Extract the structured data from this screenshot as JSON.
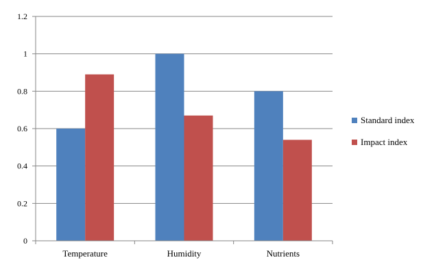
{
  "chart_data": {
    "type": "bar",
    "title": "",
    "xlabel": "",
    "ylabel": "",
    "categories": [
      "Temperature",
      "Humidity",
      "Nutrients"
    ],
    "series": [
      {
        "name": "Standard index",
        "values": [
          0.6,
          1.0,
          0.8
        ],
        "color": "#4F81BD"
      },
      {
        "name": "Impact index",
        "values": [
          0.89,
          0.67,
          0.54
        ],
        "color": "#C0504D"
      }
    ],
    "ylim": [
      0,
      1.2
    ],
    "yticks": [
      0,
      0.2,
      0.4,
      0.6,
      0.8,
      1,
      1.2
    ],
    "ytick_labels": [
      "0",
      "0.2",
      "0.4",
      "0.6",
      "0.8",
      "1",
      "1.2"
    ],
    "grid": "horizontal",
    "legend": "right"
  }
}
